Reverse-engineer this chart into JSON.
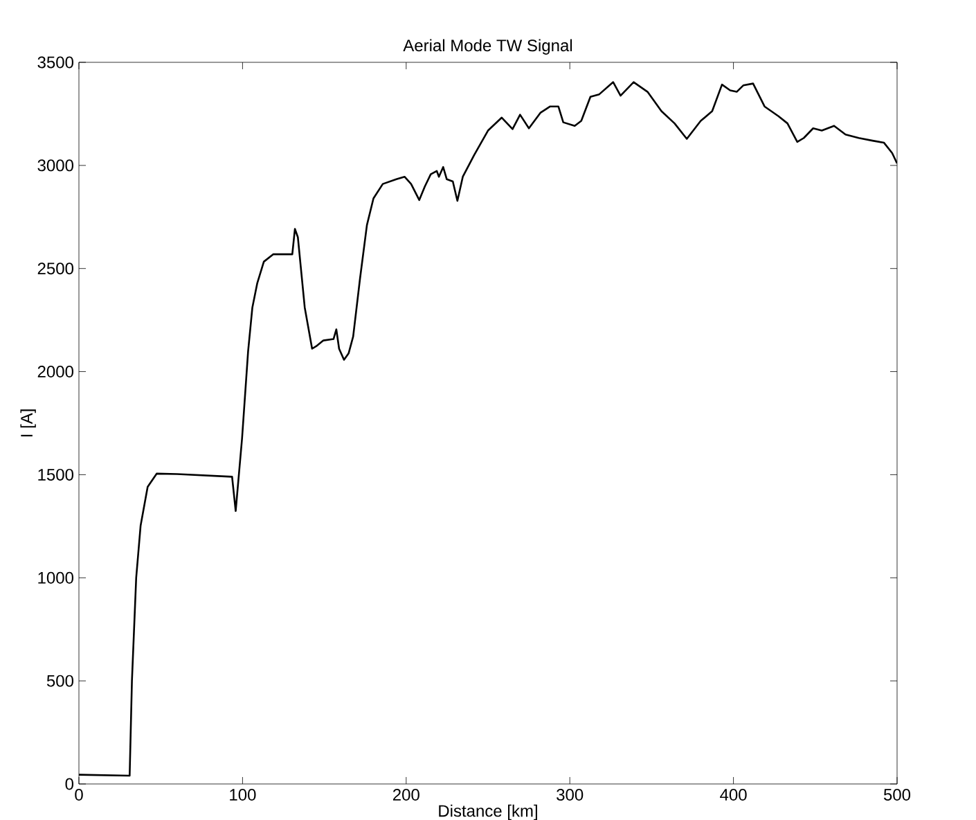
{
  "chart_data": {
    "type": "line",
    "title": "Aerial Mode TW Signal",
    "xlabel": "Distance [km]",
    "ylabel": "I [A]",
    "x": [
      0,
      31,
      32.4,
      35,
      37.7,
      42,
      47.5,
      60,
      93.6,
      95.8,
      99.7,
      103.4,
      106,
      109,
      113,
      118.7,
      130.4,
      132,
      133.8,
      138,
      142.5,
      145,
      149.4,
      155.6,
      157.3,
      159,
      162,
      164.8,
      167.6,
      171.8,
      176,
      180,
      185.7,
      194,
      199,
      203,
      208,
      211.4,
      215,
      218.7,
      220,
      222.6,
      224.8,
      228.5,
      231.3,
      234.6,
      241.6,
      250,
      258.4,
      265,
      269.6,
      275,
      282,
      288,
      293,
      296,
      303,
      307,
      312.6,
      318,
      326.5,
      331,
      339,
      347.5,
      356,
      364,
      371.5,
      380,
      387,
      393,
      398,
      402,
      406,
      412,
      419,
      427.5,
      433,
      439,
      443,
      448.7,
      454,
      461.5,
      468.5,
      476.6,
      485,
      492,
      497,
      500
    ],
    "series": [
      {
        "color": "#000000",
        "values": [
          45,
          40,
          500,
          1000,
          1253,
          1441,
          1505,
          1503,
          1490,
          1324,
          1676,
          2099,
          2311,
          2429,
          2533,
          2569,
          2569,
          2692,
          2652,
          2311,
          2111,
          2123,
          2151,
          2158,
          2205,
          2111,
          2057,
          2088,
          2170,
          2452,
          2710,
          2840,
          2910,
          2933,
          2945,
          2910,
          2832,
          2898,
          2957,
          2973,
          2945,
          2992,
          2933,
          2922,
          2828,
          2945,
          3051,
          3169,
          3232,
          3176,
          3246,
          3180,
          3255,
          3286,
          3286,
          3209,
          3192,
          3216,
          3333,
          3345,
          3404,
          3338,
          3404,
          3357,
          3263,
          3204,
          3129,
          3216,
          3263,
          3392,
          3364,
          3357,
          3388,
          3397,
          3286,
          3239,
          3204,
          3114,
          3133,
          3180,
          3169,
          3192,
          3150,
          3133,
          3120,
          3110,
          3060,
          3010
        ]
      }
    ],
    "xlim": [
      0,
      500
    ],
    "ylim": [
      0,
      3500
    ],
    "xticks": [
      0,
      100,
      200,
      300,
      400,
      500
    ],
    "yticks": [
      0,
      500,
      1000,
      1500,
      2000,
      2500,
      3000,
      3500
    ],
    "grid": false,
    "marker": "none",
    "line_style": "solid"
  }
}
